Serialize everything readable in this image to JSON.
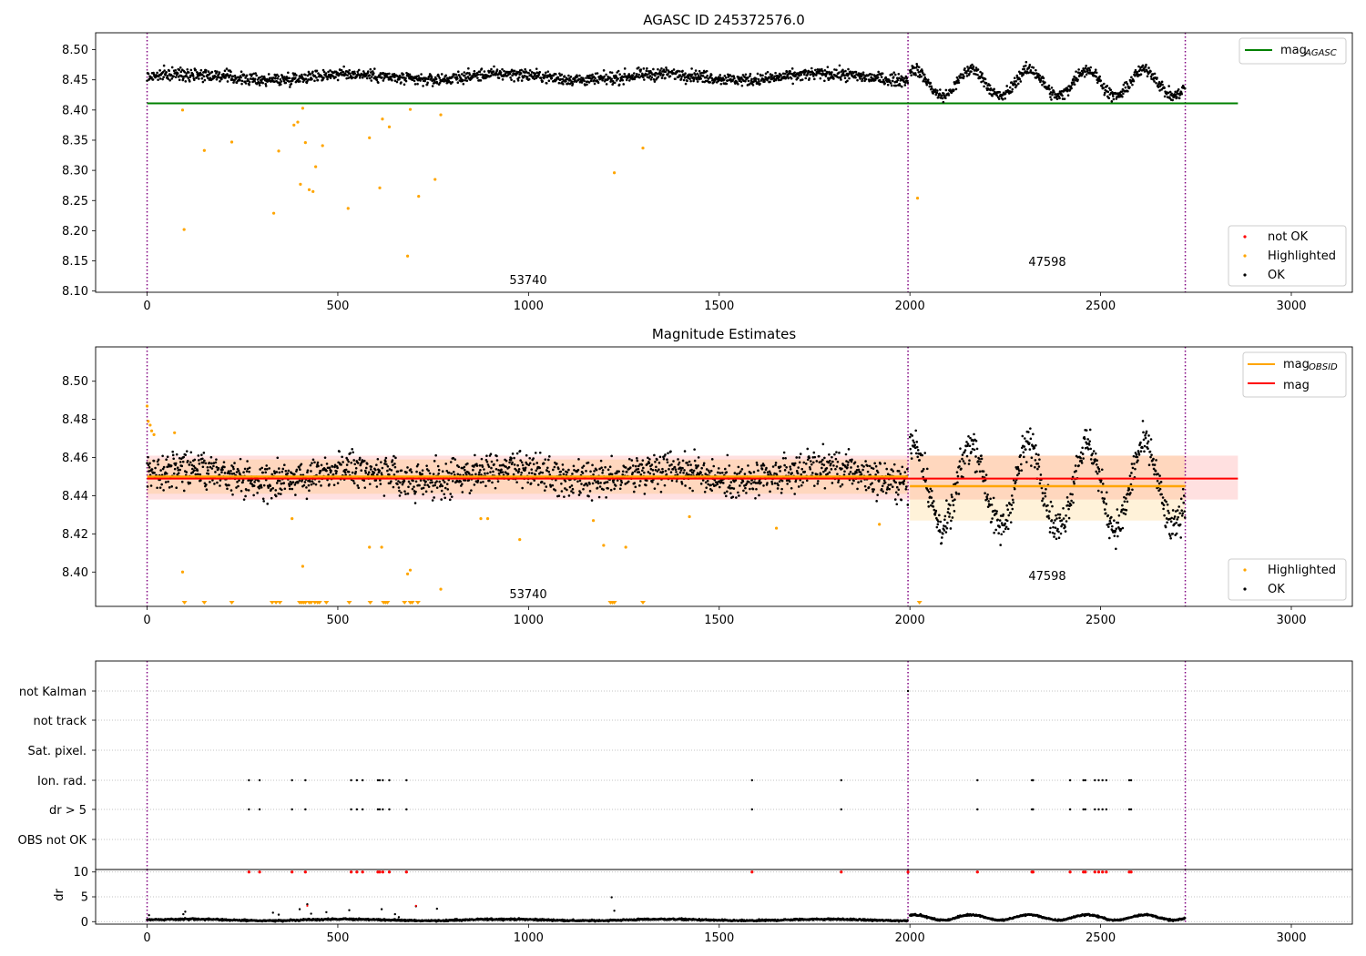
{
  "chart_data": [
    {
      "type": "scatter",
      "title": "AGASC ID 245372576.0",
      "xlabel": "",
      "ylabel": "",
      "xlim": [
        -135,
        3160
      ],
      "ylim": [
        8.098,
        8.528
      ],
      "x_ticks": [
        0,
        500,
        1000,
        1500,
        2000,
        2500,
        3000
      ],
      "y_ticks": [
        8.1,
        8.15,
        8.2,
        8.25,
        8.3,
        8.35,
        8.4,
        8.45,
        8.5
      ],
      "y_tick_labels": [
        "8.10",
        "8.15",
        "8.20",
        "8.25",
        "8.30",
        "8.35",
        "8.40",
        "8.45",
        "8.50"
      ],
      "obsid_boundaries": [
        0,
        1995,
        2722
      ],
      "obsid_labels": [
        {
          "text": "53740",
          "x": 997,
          "y": 8.115
        },
        {
          "text": "47598",
          "x": 2342,
          "y": 8.143
        }
      ],
      "reference_lines": [
        {
          "name": "mag",
          "subscript": "AGASC",
          "value": 8.411,
          "x_range": [
            0,
            2860
          ],
          "color": "#008000"
        }
      ],
      "ok_segments": [
        {
          "x0": 0,
          "x1": 1995,
          "base": 8.455,
          "amp": 0.005,
          "noise": 0.007
        },
        {
          "x0": 2000,
          "x1": 2722,
          "base": 8.445,
          "amp": 0.022,
          "noise": 0.007
        }
      ],
      "highlighted_points": {
        "x": [
          93,
          97,
          150,
          222,
          332,
          345,
          385,
          395,
          402,
          408,
          415,
          425,
          435,
          442,
          460,
          527,
          583,
          610,
          617,
          635,
          683,
          690,
          712,
          755,
          770,
          1225,
          1300,
          2020
        ],
        "y": [
          8.4,
          8.202,
          8.333,
          8.347,
          8.229,
          8.332,
          8.375,
          8.38,
          8.277,
          8.403,
          8.346,
          8.268,
          8.265,
          8.306,
          8.341,
          8.237,
          8.354,
          8.271,
          8.385,
          8.372,
          8.158,
          8.401,
          8.257,
          8.285,
          8.392,
          8.296,
          8.337,
          8.254
        ]
      },
      "not_ok_points": {
        "x": [],
        "y": []
      },
      "legend_upper": {
        "position": "upper-right",
        "entries": [
          {
            "label": "mag",
            "subscript": "AGASC",
            "color": "#008000"
          }
        ]
      },
      "legend_lower": {
        "position": "lower-right",
        "entries": [
          {
            "label": "not OK",
            "color": "#ff0000"
          },
          {
            "label": "Highlighted",
            "color": "#ffa500"
          },
          {
            "label": "OK",
            "color": "#000000"
          }
        ]
      }
    },
    {
      "type": "scatter",
      "title": "Magnitude Estimates",
      "xlabel": "",
      "ylabel": "",
      "xlim": [
        -135,
        3160
      ],
      "ylim": [
        8.382,
        8.518
      ],
      "x_ticks": [
        0,
        500,
        1000,
        1500,
        2000,
        2500,
        3000
      ],
      "y_ticks": [
        8.4,
        8.42,
        8.44,
        8.46,
        8.48,
        8.5
      ],
      "y_tick_labels": [
        "8.40",
        "8.42",
        "8.44",
        "8.46",
        "8.48",
        "8.50"
      ],
      "obsid_boundaries": [
        0,
        1995,
        2722
      ],
      "obsid_labels": [
        {
          "text": "53740",
          "x": 997,
          "y": 8.3855
        },
        {
          "text": "47598",
          "x": 2342,
          "y": 8.3955
        }
      ],
      "mag": {
        "value": 8.449,
        "band": [
          8.438,
          8.461
        ],
        "x_range": [
          0,
          2860
        ],
        "color": "#ff0000"
      },
      "mag_obsid": [
        {
          "x_range": [
            0,
            1995
          ],
          "value": 8.45,
          "band": [
            8.441,
            8.459
          ]
        },
        {
          "x_range": [
            2000,
            2722
          ],
          "value": 8.445,
          "band": [
            8.427,
            8.461
          ]
        }
      ],
      "ok_segments": [
        {
          "x0": 0,
          "x1": 1995,
          "base": 8.451,
          "amp": 0.004,
          "noise": 0.0065
        },
        {
          "x0": 2000,
          "x1": 2722,
          "base": 8.445,
          "amp": 0.022,
          "noise": 0.0065
        }
      ],
      "highlighted_points": {
        "x": [
          0,
          3,
          8,
          12,
          18,
          72,
          93,
          380,
          408,
          583,
          615,
          683,
          690,
          770,
          875,
          893,
          977,
          1170,
          1197,
          1255,
          1422,
          1650,
          1920
        ],
        "y": [
          8.487,
          8.479,
          8.477,
          8.474,
          8.472,
          8.473,
          8.4,
          8.428,
          8.403,
          8.413,
          8.413,
          8.399,
          8.401,
          8.391,
          8.428,
          8.428,
          8.417,
          8.427,
          8.414,
          8.413,
          8.429,
          8.423,
          8.425
        ]
      },
      "below_range_markers": {
        "x": [
          98,
          150,
          222,
          328,
          338,
          348,
          400,
          405,
          410,
          415,
          425,
          430,
          440,
          447,
          452,
          470,
          530,
          585,
          620,
          625,
          630,
          675,
          690,
          695,
          710,
          1215,
          1220,
          1225,
          1300,
          2025
        ],
        "y": 8.382
      },
      "legend_upper": {
        "position": "upper-right",
        "entries": [
          {
            "label": "mag",
            "subscript": "OBSID",
            "color": "#ffa500"
          },
          {
            "label": "mag",
            "subscript": "",
            "color": "#ff0000"
          }
        ]
      },
      "legend_lower": {
        "position": "lower-right",
        "entries": [
          {
            "label": "Highlighted",
            "color": "#ffa500"
          },
          {
            "label": "OK",
            "color": "#000000"
          }
        ]
      }
    },
    {
      "type": "scatter",
      "title": "",
      "xlabel": "",
      "ylabel": "",
      "xlim": [
        -135,
        3160
      ],
      "categories": [
        "not Kalman",
        "not track",
        "Sat. pixel.",
        "Ion. rad.",
        "dr > 5",
        "OBS not OK"
      ],
      "flag_points": {
        "not Kalman": [
          1995
        ],
        "Ion. rad.": [
          267,
          295,
          380,
          415,
          535,
          550,
          565,
          605,
          610,
          618,
          635,
          680,
          1586,
          1820,
          2177,
          2320,
          2323,
          2420,
          2455,
          2460,
          2485,
          2495,
          2505,
          2515,
          2575,
          2580
        ],
        "dr > 5": [
          267,
          295,
          380,
          415,
          535,
          550,
          565,
          605,
          610,
          618,
          635,
          680,
          1586,
          1820,
          2177,
          2320,
          2323,
          2420,
          2455,
          2460,
          2485,
          2495,
          2505,
          2515,
          2575,
          2580
        ]
      }
    },
    {
      "type": "scatter",
      "title": "",
      "xlabel": "",
      "ylabel": "dr",
      "xlim": [
        -135,
        3160
      ],
      "ylim": [
        -0.5,
        10.5
      ],
      "x_ticks": [
        0,
        500,
        1000,
        1500,
        2000,
        2500,
        3000
      ],
      "y_ticks": [
        0,
        5,
        10
      ],
      "y_tick_labels": [
        "0",
        "5",
        "10"
      ],
      "segments": [
        {
          "x0": 0,
          "x1": 1995,
          "base": 0.35,
          "amp": 0.15,
          "noise": 0.12
        },
        {
          "x0": 2000,
          "x1": 2722,
          "base": 0.85,
          "amp": 0.55,
          "noise": 0.12
        }
      ],
      "outliers": {
        "x": [
          5,
          95,
          100,
          330,
          345,
          400,
          420,
          430,
          470,
          530,
          615,
          650,
          660,
          705,
          760,
          1218,
          1225
        ],
        "y": [
          1.3,
          1.5,
          2.0,
          1.8,
          1.4,
          2.5,
          3.5,
          1.6,
          1.9,
          2.3,
          2.5,
          1.5,
          0.9,
          3.1,
          2.6,
          4.9,
          2.2
        ]
      },
      "red_at_ten_x": [
        267,
        295,
        380,
        415,
        535,
        550,
        565,
        605,
        610,
        618,
        635,
        680,
        1586,
        1820,
        1995,
        2177,
        2320,
        2323,
        2420,
        2455,
        2460,
        2485,
        2495,
        2505,
        2515,
        2575,
        2580
      ]
    }
  ]
}
